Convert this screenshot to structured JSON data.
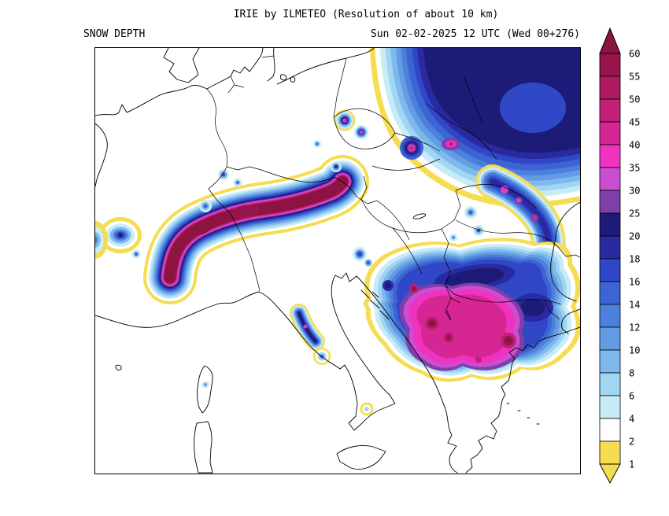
{
  "header": {
    "title": "IRIE by ILMETEO (Resolution of about 10 km)",
    "left_label": "SNOW DEPTH",
    "right_label": "Sun 02-02-2025 12 UTC (Wed 00+276)"
  },
  "legend": {
    "tick_labels": [
      "60",
      "55",
      "50",
      "45",
      "40",
      "35",
      "30",
      "25",
      "20",
      "18",
      "16",
      "14",
      "12",
      "10",
      "8",
      "6",
      "4",
      "2",
      "1"
    ],
    "band_colors": [
      "#8c1440",
      "#97154a",
      "#ad1a5e",
      "#c21f78",
      "#d62694",
      "#ef33c0",
      "#c94fd0",
      "#7d3fa8",
      "#1c1c78",
      "#2a2aa0",
      "#3048c8",
      "#3c64d2",
      "#4b80dc",
      "#649ce4",
      "#7db9ec",
      "#a0d6f2",
      "#c8ebf8",
      "#ffffff",
      "#f6dc50",
      "#f6dc50"
    ]
  },
  "map": {
    "line_color": "#000000",
    "background": "#ffffff"
  }
}
